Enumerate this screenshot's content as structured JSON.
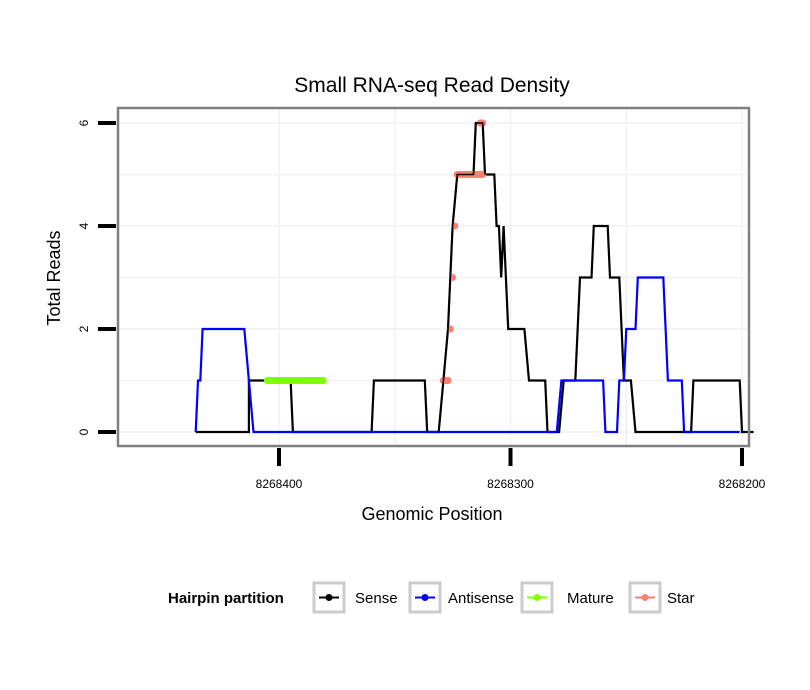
{
  "chart_data": {
    "type": "line",
    "title": "Small RNA-seq Read Density",
    "xlabel": "Genomic Position",
    "ylabel": "Total Reads",
    "x_reversed": true,
    "xlim": [
      8268472,
      8268197
    ],
    "ylim": [
      -0.25,
      6.3
    ],
    "xticks": [
      8268400,
      8268300,
      8268200
    ],
    "xtick_labels": [
      "8268400",
      "8268300",
      "8268200"
    ],
    "yticks": [
      0,
      2,
      4,
      6
    ],
    "ytick_labels": [
      "0",
      "2",
      "4",
      "6"
    ],
    "grid": true,
    "legend": {
      "title": "Hairpin partition",
      "position": "bottom",
      "entries": [
        {
          "name": "Sense",
          "color": "#000000"
        },
        {
          "name": "Antisense",
          "color": "#0000ff"
        },
        {
          "name": "Mature",
          "color": "#7fff00"
        },
        {
          "name": "Star",
          "color": "#fa8072"
        }
      ]
    },
    "series": [
      {
        "name": "Sense",
        "color": "#000000",
        "points": [
          [
            8268436,
            0
          ],
          [
            8268413,
            0
          ],
          [
            8268413,
            0
          ],
          [
            8268413,
            1
          ],
          [
            8268405,
            1
          ],
          [
            8268395,
            1
          ],
          [
            8268394,
            0
          ],
          [
            8268394,
            0
          ],
          [
            8268360,
            0
          ],
          [
            8268359,
            1
          ],
          [
            8268337,
            1
          ],
          [
            8268336,
            0
          ],
          [
            8268331,
            0
          ],
          [
            8268329,
            1
          ],
          [
            8268327,
            2
          ],
          [
            8268326,
            3
          ],
          [
            8268325,
            4
          ],
          [
            8268323,
            5
          ],
          [
            8268316,
            5
          ],
          [
            8268315,
            6
          ],
          [
            8268312,
            6
          ],
          [
            8268311,
            5
          ],
          [
            8268307,
            5
          ],
          [
            8268306,
            4
          ],
          [
            8268305,
            4
          ],
          [
            8268304,
            3
          ],
          [
            8268303,
            4
          ],
          [
            8268301,
            2
          ],
          [
            8268294,
            2
          ],
          [
            8268292,
            1
          ],
          [
            8268285,
            1
          ],
          [
            8268284,
            0
          ],
          [
            8268279,
            0
          ],
          [
            8268277,
            1
          ],
          [
            8268272,
            1
          ],
          [
            8268270,
            3
          ],
          [
            8268265,
            3
          ],
          [
            8268264,
            4
          ],
          [
            8268258,
            4
          ],
          [
            8268257,
            3
          ],
          [
            8268253,
            3
          ],
          [
            8268252,
            2
          ],
          [
            8268251,
            1
          ],
          [
            8268248,
            1
          ],
          [
            8268246,
            0
          ],
          [
            8268222,
            0
          ],
          [
            8268221,
            1
          ],
          [
            8268201,
            1
          ],
          [
            8268200,
            0
          ],
          [
            8268195,
            0
          ]
        ]
      },
      {
        "name": "Antisense",
        "color": "#0000ff",
        "points": [
          [
            8268436,
            0
          ],
          [
            8268435,
            1
          ],
          [
            8268434,
            1
          ],
          [
            8268433,
            2
          ],
          [
            8268415,
            2
          ],
          [
            8268413,
            1
          ],
          [
            8268411,
            0
          ],
          [
            8268331,
            0
          ],
          [
            8268330,
            0
          ],
          [
            8268280,
            0
          ],
          [
            8268278,
            1
          ],
          [
            8268260,
            1
          ],
          [
            8268259,
            0
          ],
          [
            8268254,
            0
          ],
          [
            8268253,
            1
          ],
          [
            8268251,
            1
          ],
          [
            8268250,
            2
          ],
          [
            8268246,
            2
          ],
          [
            8268245,
            3
          ],
          [
            8268234,
            3
          ],
          [
            8268233,
            2
          ],
          [
            8268232,
            1
          ],
          [
            8268226,
            1
          ],
          [
            8268225,
            0
          ],
          [
            8268201,
            0
          ]
        ]
      },
      {
        "name": "Mature",
        "color": "#7fff00",
        "marker_points": [
          [
            8268405,
            1
          ],
          [
            8268395,
            1
          ],
          [
            8268385,
            1
          ],
          [
            8268381,
            1
          ]
        ],
        "segments": [
          [
            [
              8268405,
              1
            ],
            [
              8268381,
              1
            ]
          ]
        ]
      },
      {
        "name": "Star",
        "color": "#fa8072",
        "marker_points": [
          [
            8268329,
            1
          ],
          [
            8268327,
            1
          ],
          [
            8268326,
            2
          ],
          [
            8268325,
            3
          ],
          [
            8268324,
            4
          ],
          [
            8268323,
            5
          ],
          [
            8268316,
            5
          ],
          [
            8268313,
            6
          ],
          [
            8268312,
            6
          ]
        ],
        "segments": [
          [
            [
              8268329,
              1
            ],
            [
              8268327,
              1
            ]
          ],
          [
            [
              8268323,
              5
            ],
            [
              8268312,
              5
            ]
          ],
          [
            [
              8268313,
              6
            ],
            [
              8268312,
              6
            ]
          ]
        ]
      }
    ]
  }
}
